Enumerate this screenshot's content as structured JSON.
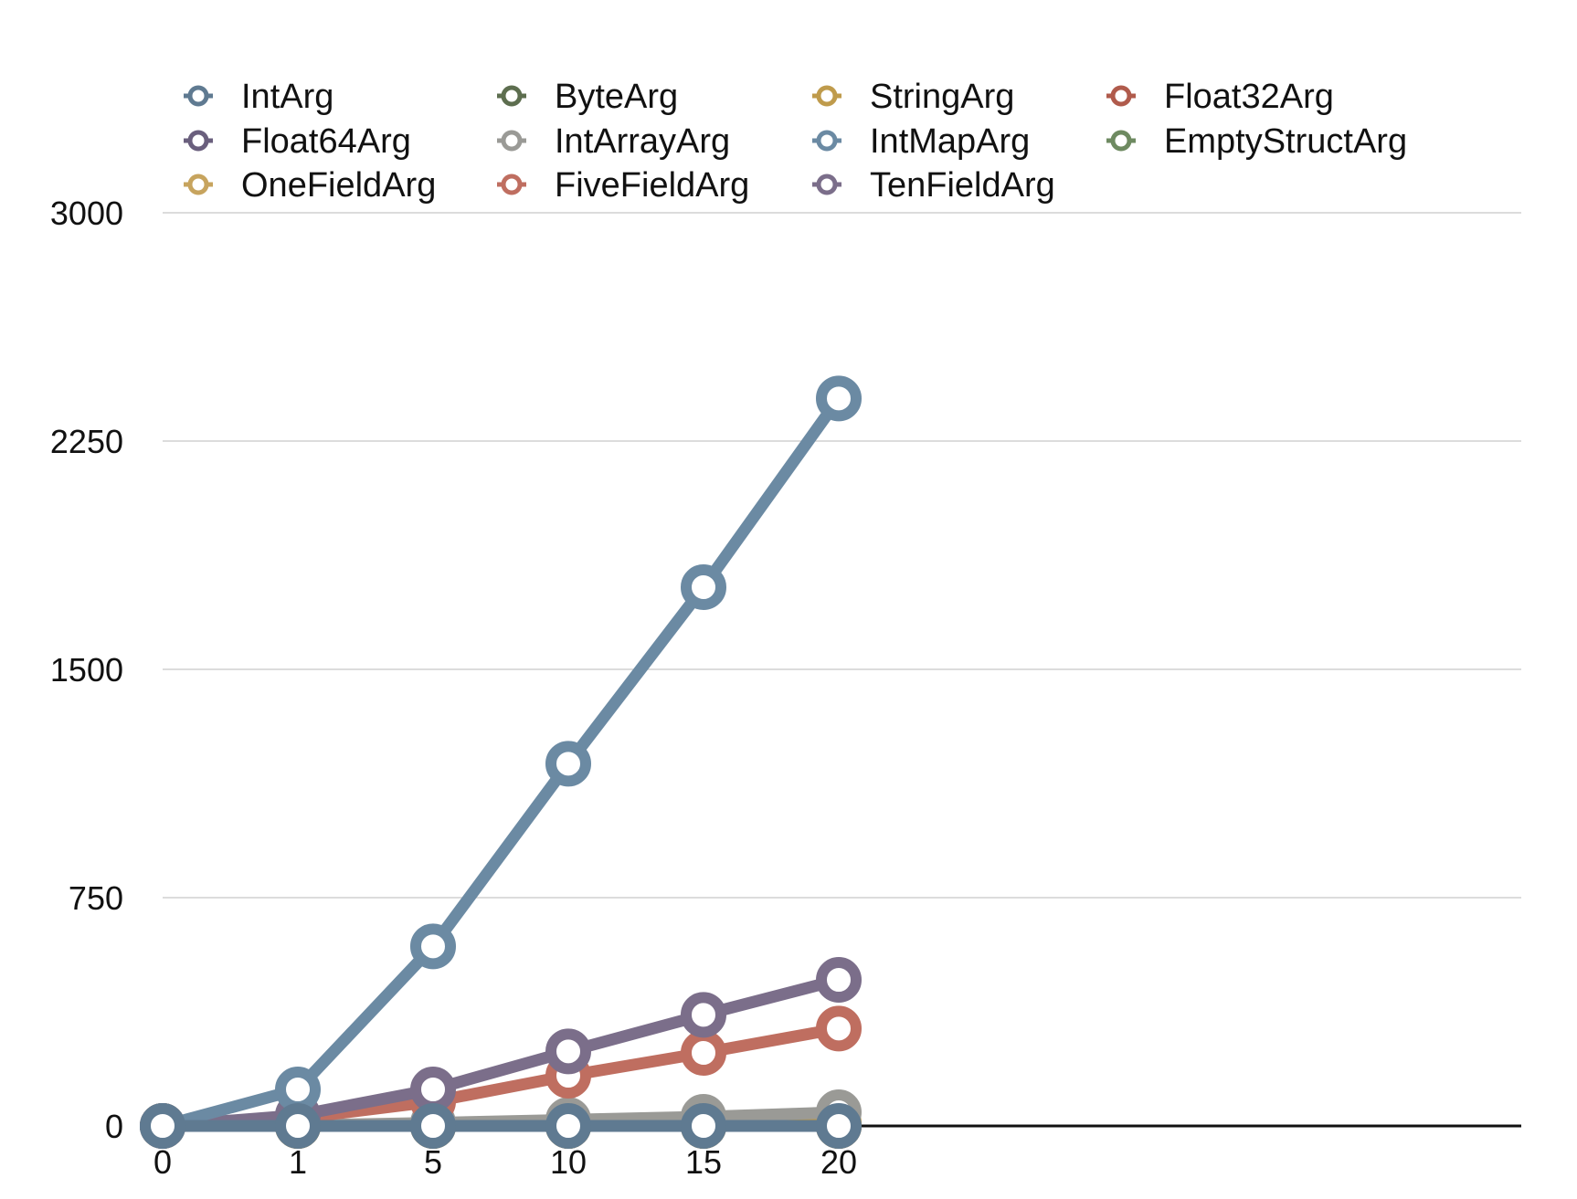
{
  "chart_data": {
    "type": "line",
    "x": [
      "0",
      "1",
      "5",
      "10",
      "15",
      "20"
    ],
    "ylim": [
      0,
      3000
    ],
    "yticks": [
      0,
      750,
      1500,
      2250,
      3000
    ],
    "grid": true,
    "legend_position": "top",
    "series": [
      {
        "name": "IntArg",
        "color": "#5f7a91",
        "values": [
          0,
          0,
          0,
          0,
          0,
          0
        ]
      },
      {
        "name": "ByteArg",
        "color": "#5d6e4f",
        "values": [
          0,
          0,
          0,
          0,
          0,
          0
        ]
      },
      {
        "name": "StringArg",
        "color": "#bf9b4c",
        "values": [
          0,
          0,
          3,
          5,
          8,
          10
        ]
      },
      {
        "name": "Float32Arg",
        "color": "#b05b4c",
        "values": [
          0,
          0,
          0,
          0,
          0,
          0
        ]
      },
      {
        "name": "Float64Arg",
        "color": "#6a5f7d",
        "values": [
          0,
          0,
          0,
          0,
          0,
          0
        ]
      },
      {
        "name": "IntArrayArg",
        "color": "#9a9a96",
        "values": [
          0,
          2,
          10,
          20,
          30,
          45
        ]
      },
      {
        "name": "IntMapArg",
        "color": "#6b8aa3",
        "values": [
          0,
          120,
          590,
          1190,
          1770,
          2390
        ]
      },
      {
        "name": "EmptyStructArg",
        "color": "#6e8a61",
        "values": [
          0,
          0,
          0,
          0,
          0,
          0
        ]
      },
      {
        "name": "OneFieldArg",
        "color": "#c7a45e",
        "values": [
          0,
          0,
          0,
          0,
          0,
          0
        ]
      },
      {
        "name": "FiveFieldArg",
        "color": "#bf6e60",
        "values": [
          0,
          25,
          80,
          165,
          240,
          320
        ]
      },
      {
        "name": "TenFieldArg",
        "color": "#7b6e8a",
        "values": [
          0,
          35,
          120,
          245,
          365,
          480
        ]
      }
    ]
  }
}
